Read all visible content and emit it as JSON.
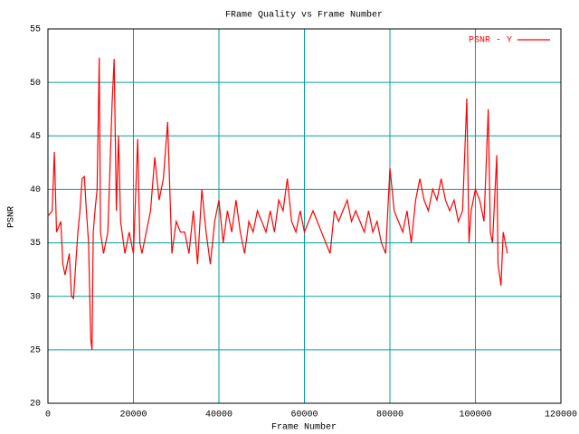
{
  "chart_data": {
    "type": "line",
    "title": "FRame Quality vs Frame Number",
    "xlabel": "Frame Number",
    "ylabel": "PSNR",
    "x": [
      0,
      1000,
      1500,
      2000,
      3000,
      3500,
      4000,
      5000,
      5500,
      6000,
      6500,
      7000,
      7500,
      8000,
      8500,
      9000,
      9500,
      10000,
      10300,
      10600,
      11000,
      11500,
      12000,
      12300,
      13000,
      14000,
      15000,
      15500,
      16000,
      16500,
      17000,
      18000,
      19000,
      20000,
      21000,
      21500,
      22000,
      23000,
      24000,
      25000,
      26000,
      27000,
      28000,
      28500,
      29000,
      30000,
      31000,
      32000,
      33000,
      34000,
      35000,
      36000,
      37000,
      38000,
      39000,
      40000,
      41000,
      42000,
      43000,
      44000,
      45000,
      46000,
      47000,
      48000,
      49000,
      50000,
      51000,
      52000,
      53000,
      54000,
      55000,
      56000,
      57000,
      58000,
      59000,
      60000,
      61000,
      62000,
      63000,
      64000,
      65000,
      66000,
      67000,
      68000,
      69000,
      70000,
      71000,
      72000,
      73000,
      74000,
      75000,
      76000,
      77000,
      78000,
      79000,
      80000,
      80500,
      81000,
      82000,
      83000,
      84000,
      85000,
      86000,
      87000,
      88000,
      89000,
      90000,
      91000,
      92000,
      93000,
      94000,
      95000,
      96000,
      97000,
      98000,
      98500,
      99000,
      100000,
      101000,
      102000,
      103000,
      103500,
      104000,
      105000,
      105300,
      106000,
      106500,
      107000,
      107500
    ],
    "series": [
      {
        "name": "PSNR - Y",
        "color": "#ff0000",
        "values": [
          37.5,
          38,
          43.5,
          36,
          37,
          33,
          32,
          34,
          30,
          29.8,
          33,
          36,
          38,
          41,
          41.2,
          38,
          35,
          26,
          25,
          36,
          38,
          40,
          52.3,
          36,
          34,
          36,
          48,
          52.2,
          38,
          45,
          37,
          34,
          36,
          34,
          44.7,
          35,
          34,
          36,
          38,
          43,
          39,
          41,
          46.3,
          40,
          34,
          37,
          36,
          36,
          34,
          38,
          33,
          40,
          36,
          33,
          37,
          39,
          35,
          38,
          36,
          39,
          36,
          34,
          37,
          36,
          38,
          37,
          36,
          38,
          36,
          39,
          38,
          41,
          37,
          36,
          38,
          36,
          37,
          38,
          37,
          36,
          35,
          34,
          38,
          37,
          38,
          39,
          37,
          38,
          37,
          36,
          38,
          36,
          37,
          35,
          34,
          42,
          40,
          38,
          37,
          36,
          38,
          35,
          39,
          41,
          39,
          38,
          40,
          39,
          41,
          39,
          38,
          39,
          37,
          38,
          48.5,
          35,
          38,
          40,
          39,
          37,
          47.5,
          36,
          35,
          43.2,
          33,
          31,
          36,
          35,
          34
        ]
      }
    ],
    "xlim": [
      0,
      120000
    ],
    "xticks": [
      0,
      20000,
      40000,
      60000,
      80000,
      100000,
      120000
    ],
    "ylim": [
      20,
      55
    ],
    "yticks": [
      20,
      25,
      30,
      35,
      40,
      45,
      50,
      55
    ],
    "grid": true,
    "grid_color": "#00a0a0",
    "legend": "upper right"
  }
}
